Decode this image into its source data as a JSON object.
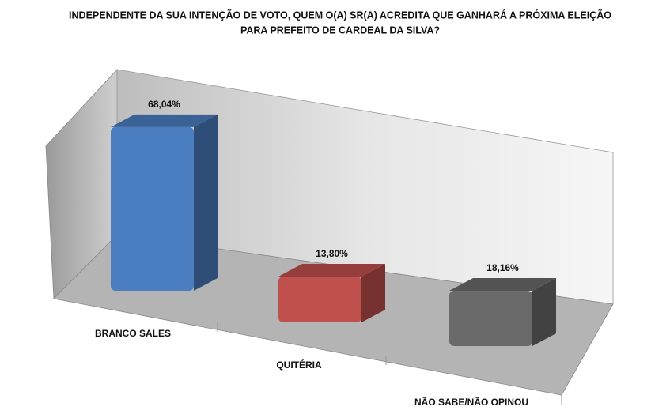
{
  "chart_data": {
    "type": "bar3d",
    "title": [
      "INDEPENDENTE DA SUA INTENÇÃO DE VOTO, QUEM O(A) SR(A) ACREDITA QUE GANHARÁ A PRÓXIMA ELEIÇÃO",
      "PARA PREFEITO DE CARDEAL DA SILVA?"
    ],
    "categories": [
      "BRANCO SALES",
      "QUITÉRIA",
      "NÃO SABE/NÃO OPINOU"
    ],
    "values": [
      68.04,
      13.8,
      18.16
    ],
    "value_labels": [
      "68,04%",
      "13,80%",
      "18,16%"
    ],
    "colors": [
      "#4a7ec0",
      "#c0504d",
      "#6a6a6a"
    ]
  }
}
